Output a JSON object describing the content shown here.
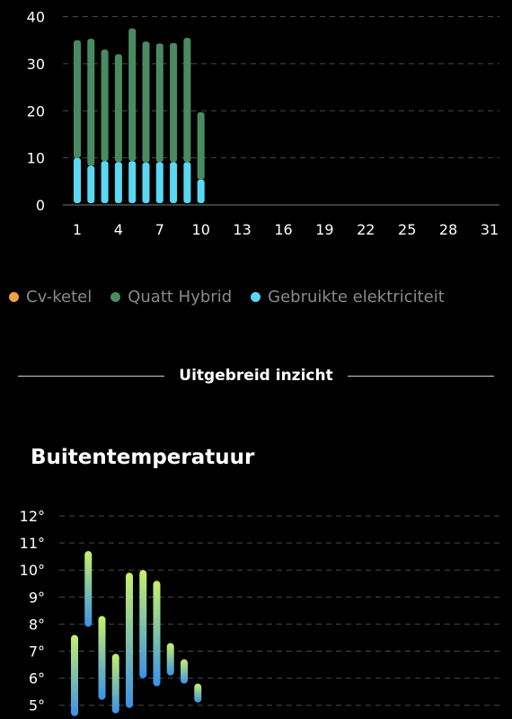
{
  "energy_legend": [
    {
      "label": "Cv-ketel",
      "color": "#f2a040"
    },
    {
      "label": "Quatt Hybrid",
      "color": "#4a8a62"
    },
    {
      "label": "Gebruikte elektriciteit",
      "color": "#5ad8f2"
    }
  ],
  "section_divider": "Uitgebreid inzicht",
  "temperature_title": "Buitentemperatuur",
  "chart_data": [
    {
      "type": "bar",
      "stacked": true,
      "title": "",
      "xlabel": "",
      "ylabel": "",
      "x_ticks": [
        1,
        4,
        7,
        10,
        13,
        16,
        19,
        22,
        25,
        28,
        31
      ],
      "y_ticks": [
        0,
        10,
        20,
        30,
        40
      ],
      "ylim": [
        0,
        40
      ],
      "x": [
        1,
        2,
        3,
        4,
        5,
        6,
        7,
        8,
        9,
        10
      ],
      "series": [
        {
          "name": "Gebruikte elektriciteit",
          "color": "#5ad8f2",
          "values": [
            10,
            8.3,
            9.3,
            9.1,
            9.3,
            9.0,
            9.1,
            9.1,
            9.1,
            5.4
          ]
        },
        {
          "name": "Quatt Hybrid",
          "color": "#4a8a62",
          "values": [
            25,
            27,
            23.7,
            22.9,
            28.2,
            25.7,
            25.2,
            25.3,
            26.4,
            14.3
          ]
        },
        {
          "name": "Cv-ketel",
          "color": "#f2a040",
          "values": [
            0,
            0,
            0,
            0,
            0,
            0,
            0,
            0,
            0,
            0
          ]
        }
      ],
      "grid": true
    },
    {
      "type": "bar",
      "subtype": "range",
      "title": "Buitentemperatuur",
      "y_ticks": [
        "12°",
        "11°",
        "10°",
        "9°",
        "8°",
        "7°",
        "6°",
        "5°"
      ],
      "y_tick_values": [
        12,
        11,
        10,
        9,
        8,
        7,
        6,
        5
      ],
      "x": [
        1,
        2,
        3,
        4,
        5,
        6,
        7,
        8,
        9,
        10
      ],
      "ranges": [
        {
          "day": 1,
          "min": 4.6,
          "max": 7.6
        },
        {
          "day": 2,
          "min": 7.9,
          "max": 10.7
        },
        {
          "day": 3,
          "min": 5.2,
          "max": 8.3
        },
        {
          "day": 4,
          "min": 4.7,
          "max": 6.9
        },
        {
          "day": 5,
          "min": 4.9,
          "max": 9.9
        },
        {
          "day": 6,
          "min": 6.0,
          "max": 10.0
        },
        {
          "day": 7,
          "min": 5.7,
          "max": 9.6
        },
        {
          "day": 8,
          "min": 6.1,
          "max": 7.3
        },
        {
          "day": 9,
          "min": 5.8,
          "max": 6.7
        },
        {
          "day": 10,
          "min": 5.1,
          "max": 5.8
        }
      ],
      "gradient": {
        "top": "#c6f06a",
        "bottom": "#3a92e8"
      },
      "grid": true
    }
  ]
}
